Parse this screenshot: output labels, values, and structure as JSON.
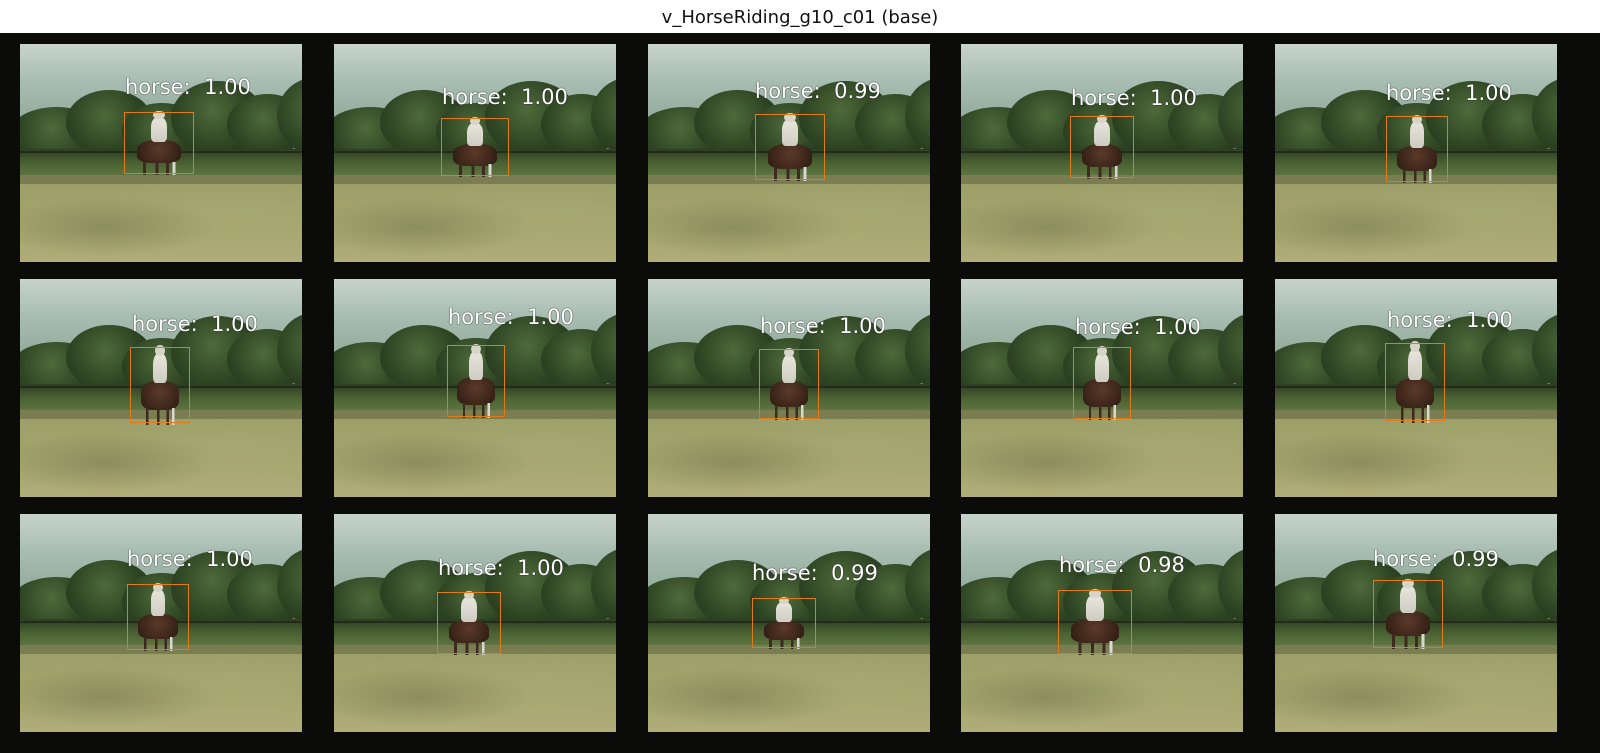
{
  "title": "v_HorseRiding_g10_c01 (base)",
  "detections": [
    {
      "label": "horse:  1.00"
    },
    {
      "label": "horse:  1.00"
    },
    {
      "label": "horse:  0.99"
    },
    {
      "label": "horse:  1.00"
    },
    {
      "label": "horse:  1.00"
    },
    {
      "label": "horse:  1.00"
    },
    {
      "label": "horse:  1.00"
    },
    {
      "label": "horse:  1.00"
    },
    {
      "label": "horse:  1.00"
    },
    {
      "label": "horse:  1.00"
    },
    {
      "label": "horse:  1.00"
    },
    {
      "label": "horse:  1.00"
    },
    {
      "label": "horse:  0.99"
    },
    {
      "label": "horse:  0.98"
    },
    {
      "label": "horse:  0.99"
    }
  ],
  "colors": {
    "box": "#e07b18",
    "label_text": "#ffffff",
    "background": "#0b0c09"
  }
}
